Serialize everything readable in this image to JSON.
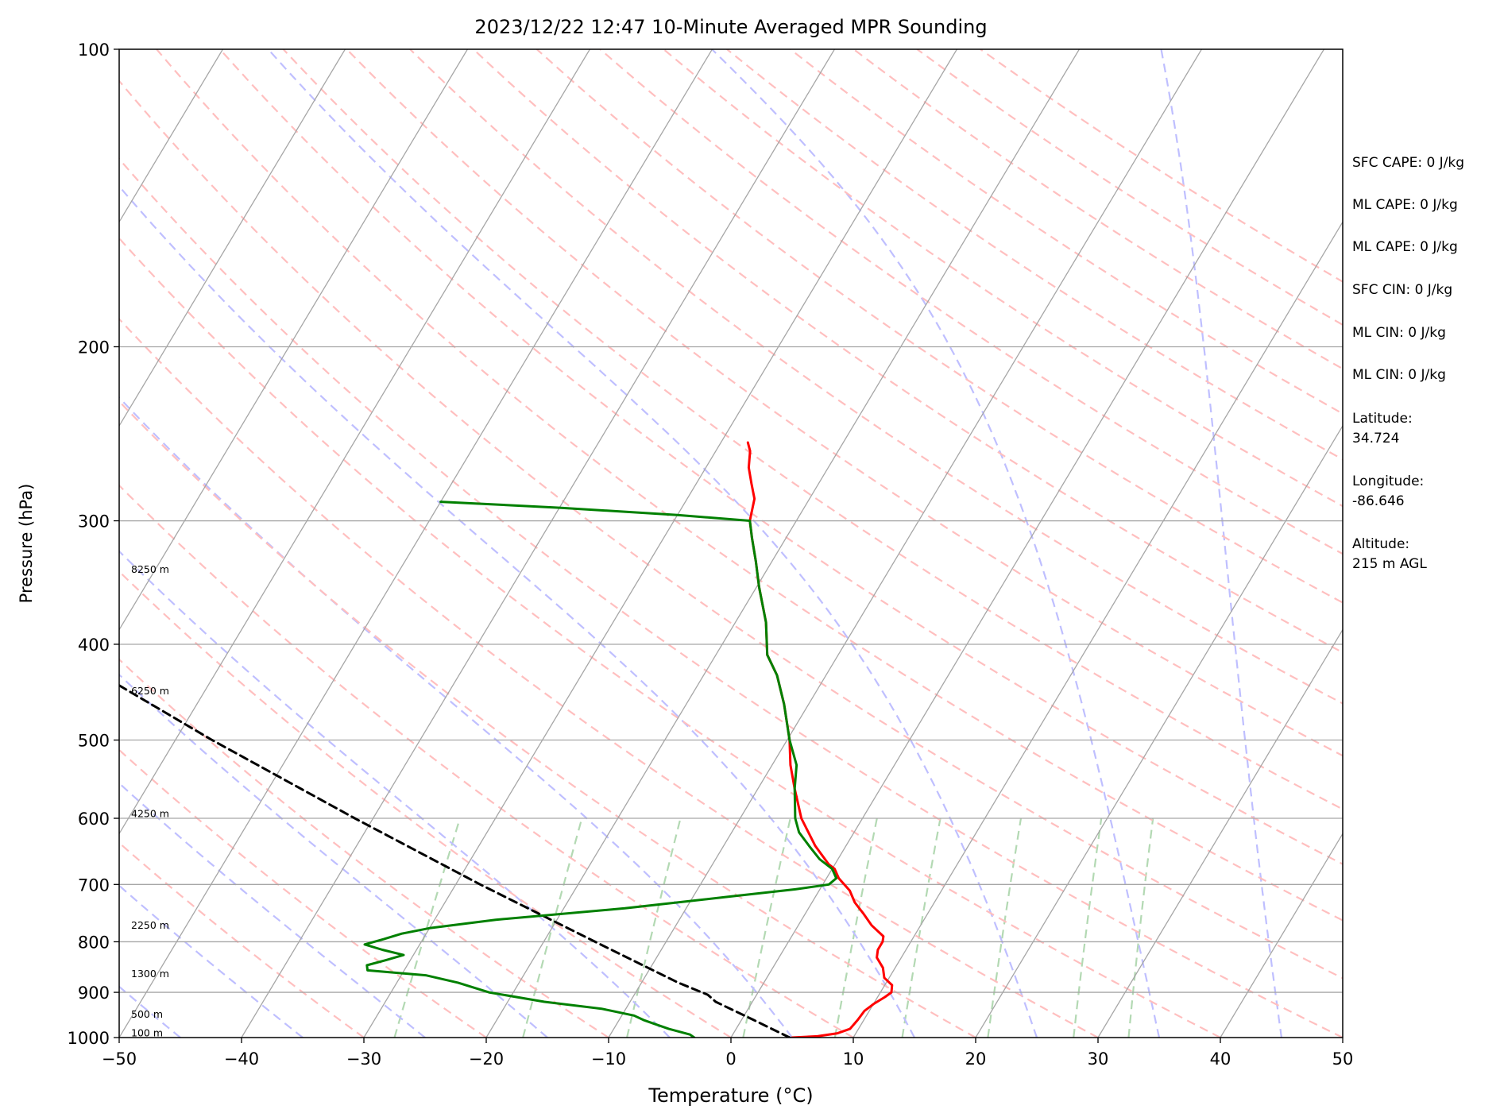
{
  "chart_data": {
    "type": "skew-t",
    "title": "2023/12/22 12:47 10-Minute Averaged MPR Sounding",
    "xlabel": "Temperature (°C)",
    "ylabel": "Pressure (hPa)",
    "xlim": [
      -50,
      50
    ],
    "ylim": [
      1000,
      100
    ],
    "y_scale": "log",
    "x_ticks": [
      -50,
      -40,
      -30,
      -20,
      -10,
      0,
      10,
      20,
      30,
      40,
      50
    ],
    "x_tick_labels": [
      "−50",
      "−40",
      "−30",
      "−20",
      "−10",
      "0",
      "10",
      "20",
      "30",
      "40",
      "50"
    ],
    "y_ticks": [
      100,
      200,
      300,
      400,
      500,
      600,
      700,
      800,
      900,
      1000
    ],
    "y_tick_labels": [
      "100",
      "200",
      "300",
      "400",
      "500",
      "600",
      "700",
      "800",
      "900",
      "1000"
    ],
    "horizontal_grid_pressures": [
      200,
      300,
      400,
      500,
      600,
      700,
      800,
      900
    ],
    "colors": {
      "temperature": "#ff0000",
      "dewpoint": "#008000",
      "parcel": "#000000",
      "isotherm": "#a6a6a6",
      "dry_adiabat": "#ffbfbf",
      "moist_adiabat": "#bfbfff",
      "mixing_ratio": "#b3d9b3",
      "horizontal_grid": "#a6a6a6"
    },
    "isotherms": [
      -150,
      -140,
      -130,
      -120,
      -110,
      -100,
      -90,
      -80,
      -70,
      -60,
      -50,
      -40,
      -30,
      -20,
      -10,
      0,
      10,
      20,
      30,
      40,
      50
    ],
    "dry_adiabats_theta_C": [
      -30,
      -20,
      -10,
      0,
      10,
      20,
      30,
      40,
      50,
      60,
      70,
      80,
      90,
      100,
      110,
      120,
      130,
      140,
      150,
      160,
      170,
      180,
      190,
      200
    ],
    "moist_adiabats_surface_C": [
      -45,
      -35,
      -25,
      -15,
      -5,
      5,
      15,
      25,
      35,
      45
    ],
    "mixing_ratio_lines_surface_C": [
      -27.5,
      -17,
      -8.5,
      1,
      8.5,
      14,
      21,
      28,
      32.5
    ],
    "temperature": [
      [
        1000,
        5.0
      ],
      [
        997,
        7.0
      ],
      [
        990,
        8.5
      ],
      [
        980,
        9.3
      ],
      [
        960,
        9.5
      ],
      [
        940,
        9.6
      ],
      [
        925,
        10.0
      ],
      [
        910,
        10.6
      ],
      [
        900,
        10.9
      ],
      [
        885,
        10.6
      ],
      [
        870,
        9.6
      ],
      [
        850,
        9.0
      ],
      [
        830,
        8.0
      ],
      [
        815,
        7.7
      ],
      [
        800,
        7.7
      ],
      [
        790,
        7.5
      ],
      [
        770,
        6.0
      ],
      [
        750,
        4.8
      ],
      [
        730,
        3.5
      ],
      [
        710,
        2.5
      ],
      [
        690,
        1.0
      ],
      [
        675,
        0.2
      ],
      [
        668,
        -0.5
      ],
      [
        640,
        -2.5
      ],
      [
        600,
        -5.0
      ],
      [
        560,
        -7.0
      ],
      [
        530,
        -8.5
      ],
      [
        500,
        -9.8
      ],
      [
        460,
        -12.0
      ],
      [
        430,
        -14.0
      ],
      [
        410,
        -15.8
      ],
      [
        380,
        -17.5
      ],
      [
        350,
        -19.8
      ],
      [
        330,
        -21.3
      ],
      [
        312,
        -22.8
      ],
      [
        300,
        -23.8
      ],
      [
        285,
        -24.5
      ],
      [
        275,
        -25.5
      ],
      [
        265,
        -26.5
      ],
      [
        255,
        -27.2
      ],
      [
        250,
        -27.8
      ]
    ],
    "dewpoint": [
      [
        1000,
        -3.0
      ],
      [
        993,
        -3.5
      ],
      [
        980,
        -5.5
      ],
      [
        968,
        -7.0
      ],
      [
        960,
        -8.0
      ],
      [
        950,
        -9.0
      ],
      [
        935,
        -12.0
      ],
      [
        920,
        -17.0
      ],
      [
        900,
        -22.0
      ],
      [
        880,
        -25.0
      ],
      [
        865,
        -28.0
      ],
      [
        855,
        -33.0
      ],
      [
        845,
        -33.3
      ],
      [
        835,
        -32.0
      ],
      [
        825,
        -30.8
      ],
      [
        815,
        -32.8
      ],
      [
        805,
        -34.5
      ],
      [
        795,
        -33.2
      ],
      [
        785,
        -32.0
      ],
      [
        775,
        -30.0
      ],
      [
        760,
        -25.0
      ],
      [
        740,
        -15.0
      ],
      [
        720,
        -7.0
      ],
      [
        708,
        -2.0
      ],
      [
        700,
        0.5
      ],
      [
        690,
        0.8
      ],
      [
        675,
        0.0
      ],
      [
        660,
        -1.5
      ],
      [
        640,
        -3.0
      ],
      [
        620,
        -4.5
      ],
      [
        600,
        -5.5
      ],
      [
        560,
        -7.0
      ],
      [
        530,
        -8.0
      ],
      [
        500,
        -9.8
      ],
      [
        460,
        -12.0
      ],
      [
        430,
        -14.0
      ],
      [
        410,
        -15.8
      ],
      [
        380,
        -17.5
      ],
      [
        350,
        -19.8
      ],
      [
        330,
        -21.3
      ],
      [
        312,
        -22.8
      ],
      [
        300,
        -23.8
      ],
      [
        296,
        -30.0
      ],
      [
        291,
        -40.0
      ],
      [
        287,
        -50.0
      ]
    ],
    "parcel": [
      [
        1000,
        4.8
      ],
      [
        960,
        1.0
      ],
      [
        920,
        -3.0
      ],
      [
        905,
        -4.0
      ],
      [
        880,
        -7.0
      ],
      [
        850,
        -10.2
      ],
      [
        800,
        -15.8
      ],
      [
        700,
        -28.0
      ],
      [
        600,
        -41.5
      ],
      [
        500,
        -57.0
      ],
      [
        400,
        -75.0
      ],
      [
        300,
        -99.0
      ],
      [
        268,
        -108.0
      ]
    ],
    "height_labels": [
      {
        "label": "100 m",
        "pressure": 990
      },
      {
        "label": "500 m",
        "pressure": 948
      },
      {
        "label": "1300 m",
        "pressure": 862
      },
      {
        "label": "2250 m",
        "pressure": 770
      },
      {
        "label": "4250 m",
        "pressure": 594
      },
      {
        "label": "6250 m",
        "pressure": 446
      },
      {
        "label": "8250 m",
        "pressure": 336
      }
    ]
  },
  "side_panel": {
    "sfc_cape": "SFC CAPE: 0 J/kg",
    "ml_cape_1": "ML CAPE: 0 J/kg",
    "ml_cape_2": "ML CAPE: 0 J/kg",
    "sfc_cin": "SFC CIN: 0 J/kg",
    "ml_cin_1": "ML CIN: 0 J/kg",
    "ml_cin_2": "ML CIN: 0 J/kg",
    "latitude_label": "Latitude:",
    "latitude_value": "34.724",
    "longitude_label": "Longitude:",
    "longitude_value": "-86.646",
    "altitude_label": "Altitude:",
    "altitude_value": "215 m AGL"
  }
}
